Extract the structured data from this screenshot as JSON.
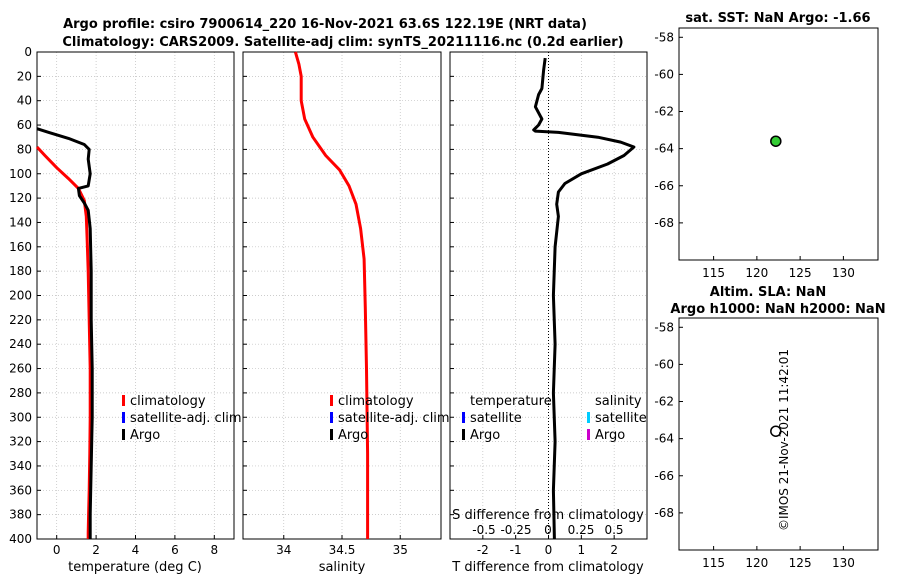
{
  "header": {
    "title_line1": "Argo profile: csiro 7900614_220 16-Nov-2021 63.6S 122.19E (NRT data)",
    "title_line2": "Climatology: CARS2009. Satellite-adj clim: synTS_20211116.nc (0.2d earlier)"
  },
  "watermark": "©IMOS 21-Nov-2021 11:42:01",
  "colors": {
    "climatology": "#ff0000",
    "satellite_adj": "#0000ff",
    "argo": "#000000",
    "satellite_s": "#00ccff",
    "argo_s": "#cc00cc",
    "sst_marker": "#33cc33",
    "grid": "#bdbdbd"
  },
  "chart_data": [
    {
      "id": "temperature",
      "type": "line",
      "xlabel": "temperature (deg C)",
      "ylabel": "",
      "xlim": [
        -1,
        9
      ],
      "ylim": [
        400,
        0
      ],
      "xticks": [
        0,
        2,
        4,
        6,
        8
      ],
      "yticks": [
        0,
        20,
        40,
        60,
        80,
        100,
        120,
        140,
        160,
        180,
        200,
        220,
        240,
        260,
        280,
        300,
        320,
        340,
        360,
        380,
        400
      ],
      "legend": [
        "climatology",
        "satellite-adj. clim",
        "Argo"
      ],
      "series": [
        {
          "name": "climatology",
          "color": "#ff0000",
          "x": [
            -1,
            -0.6,
            0.0,
            0.6,
            1.1,
            1.4,
            1.5,
            1.55,
            1.6,
            1.65,
            1.7,
            1.7,
            1.68,
            1.65,
            1.62,
            1.6,
            1.6
          ],
          "y": [
            78,
            85,
            95,
            104,
            112,
            122,
            135,
            155,
            180,
            220,
            260,
            300,
            330,
            360,
            380,
            395,
            400
          ]
        },
        {
          "name": "Argo",
          "color": "#000000",
          "x": [
            -1,
            -0.4,
            0.6,
            1.4,
            1.65,
            1.6,
            1.7,
            1.6,
            1.1,
            1.15,
            1.4,
            1.6,
            1.7,
            1.75,
            1.75,
            1.8,
            1.8,
            1.75,
            1.7,
            1.7
          ],
          "y": [
            63,
            66,
            71,
            76,
            80,
            88,
            100,
            110,
            112,
            118,
            124,
            130,
            145,
            180,
            220,
            260,
            300,
            340,
            380,
            400
          ]
        }
      ]
    },
    {
      "id": "salinity",
      "type": "line",
      "xlabel": "salinity",
      "xlim": [
        33.65,
        35.35
      ],
      "ylim": [
        400,
        0
      ],
      "xticks": [
        34,
        34.5,
        35
      ],
      "legend": [
        "climatology",
        "satellite-adj. clim",
        "Argo"
      ],
      "series": [
        {
          "name": "climatology",
          "color": "#ff0000",
          "x": [
            34.1,
            34.13,
            34.15,
            34.15,
            34.15,
            34.18,
            34.25,
            34.36,
            34.48,
            34.56,
            34.62,
            34.66,
            34.69,
            34.7,
            34.71,
            34.72,
            34.72
          ],
          "y": [
            0,
            10,
            20,
            30,
            40,
            55,
            70,
            85,
            97,
            110,
            125,
            145,
            170,
            210,
            260,
            330,
            400
          ]
        }
      ]
    },
    {
      "id": "difference",
      "type": "line",
      "xlabel": "T difference from climatology",
      "xlabel_top": "S difference from climatology",
      "xlim": [
        -3,
        3
      ],
      "ylim": [
        400,
        0
      ],
      "xticks": [
        -2,
        -1,
        0,
        1,
        2
      ],
      "xticks_s": [
        "-0.5",
        "-0.25",
        "0",
        "0.25",
        "0.5"
      ],
      "legend_temperature_title": "temperature",
      "legend_salinity_title": "salinity",
      "legend_labels": [
        "satellite",
        "Argo"
      ],
      "series": [
        {
          "name": "T difference (Argo)",
          "color": "#000000",
          "x": [
            -0.1,
            -0.15,
            -0.2,
            -0.3,
            -0.4,
            -0.2,
            -0.3,
            -0.45,
            -0.4,
            0.3,
            1.5,
            2.2,
            2.6,
            2.3,
            1.8,
            1.0,
            0.5,
            0.3,
            0.25,
            0.3,
            0.2,
            0.15,
            0.2,
            0.15,
            0.2,
            0.15,
            0.18
          ],
          "y": [
            5,
            15,
            30,
            35,
            45,
            55,
            60,
            64,
            65,
            66,
            70,
            74,
            78,
            85,
            92,
            100,
            108,
            115,
            125,
            135,
            160,
            200,
            240,
            280,
            320,
            360,
            400
          ]
        }
      ]
    },
    {
      "id": "sst_map",
      "type": "scatter",
      "title": "sat. SST: NaN Argo: -1.66",
      "xlim": [
        111,
        134
      ],
      "ylim": [
        -70,
        -57.5
      ],
      "xticks": [
        115,
        120,
        125,
        130
      ],
      "yticks": [
        -58,
        -60,
        -62,
        -64,
        -66,
        -68
      ],
      "points": [
        {
          "lon": 122.19,
          "lat": -63.6,
          "fill": "#33cc33"
        }
      ]
    },
    {
      "id": "sla_map",
      "type": "scatter",
      "title_line1": "Altim. SLA: NaN",
      "title_line2": "Argo h1000: NaN h2000: NaN",
      "xlim": [
        111,
        134
      ],
      "ylim": [
        -70,
        -57.5
      ],
      "xticks": [
        115,
        120,
        125,
        130
      ],
      "yticks": [
        -58,
        -60,
        -62,
        -64,
        -66,
        -68
      ],
      "points": [
        {
          "lon": 122.19,
          "lat": -63.6,
          "fill": "#ffffff"
        }
      ]
    }
  ]
}
